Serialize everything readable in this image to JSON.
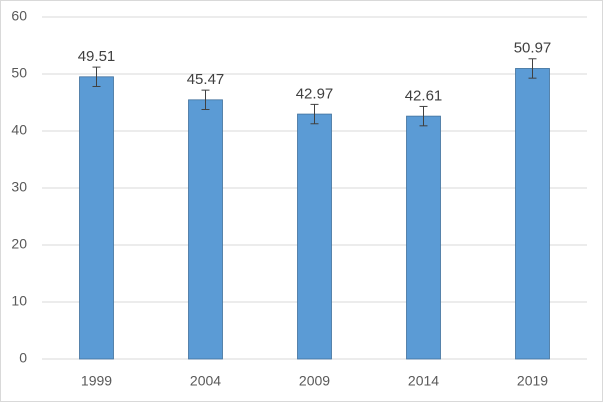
{
  "chart_data": {
    "type": "bar",
    "categories": [
      "1999",
      "2004",
      "2009",
      "2014",
      "2019"
    ],
    "values": [
      49.51,
      45.47,
      42.97,
      42.61,
      50.97
    ],
    "errors": [
      1.7,
      1.7,
      1.7,
      1.7,
      1.7
    ],
    "color": "#5b9bd5",
    "ylim": [
      0,
      60
    ],
    "yticks": [
      0,
      10,
      20,
      30,
      40,
      50,
      60
    ],
    "grid": true
  }
}
